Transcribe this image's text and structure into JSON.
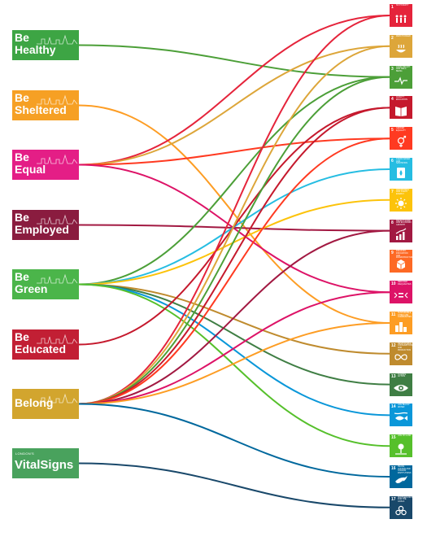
{
  "themes": [
    {
      "line1": "Be",
      "line2": "Healthy",
      "color": "#3DA544"
    },
    {
      "line1": "Be",
      "line2": "Sheltered",
      "color": "#F6A024"
    },
    {
      "line1": "Be",
      "line2": "Equal",
      "color": "#E41E86"
    },
    {
      "line1": "Be",
      "line2": "Employed",
      "color": "#8A1C3F"
    },
    {
      "line1": "Be",
      "line2": "Green",
      "color": "#4BB54A"
    },
    {
      "line1": "Be",
      "line2": "Educated",
      "color": "#C21F34"
    },
    {
      "line1": "Belong",
      "line2": "",
      "color": "#D2A52E"
    },
    {
      "line1": "LONDON'S",
      "line2": "VitalSigns",
      "color": "#49A25D"
    }
  ],
  "goals": [
    {
      "num": "1",
      "title": "NO POVERTY",
      "color": "#E5243B",
      "icon": "people-icon"
    },
    {
      "num": "2",
      "title": "ZERO HUNGER",
      "color": "#DDA63A",
      "icon": "bowl-icon"
    },
    {
      "num": "3",
      "title": "GOOD HEALTH AND WELL-BEING",
      "color": "#4C9F38",
      "icon": "heartbeat-icon"
    },
    {
      "num": "4",
      "title": "QUALITY EDUCATION",
      "color": "#C5192D",
      "icon": "book-icon"
    },
    {
      "num": "5",
      "title": "GENDER EQUALITY",
      "color": "#FF3A21",
      "icon": "gender-icon"
    },
    {
      "num": "6",
      "title": "CLEAN WATER AND SANITATION",
      "color": "#26BDE2",
      "icon": "water-icon"
    },
    {
      "num": "7",
      "title": "AFFORDABLE AND CLEAN ENERGY",
      "color": "#FCC30B",
      "icon": "sun-icon"
    },
    {
      "num": "8",
      "title": "DECENT WORK AND ECONOMIC GROWTH",
      "color": "#A21942",
      "icon": "growth-chart-icon"
    },
    {
      "num": "9",
      "title": "INDUSTRY, INNOVATION AND INFRASTRUCTURE",
      "color": "#FD6925",
      "icon": "cubes-icon"
    },
    {
      "num": "10",
      "title": "REDUCED INEQUALITIES",
      "color": "#DD1367",
      "icon": "equality-icon"
    },
    {
      "num": "11",
      "title": "SUSTAINABLE CITIES AND COMMUNITIES",
      "color": "#FD9D24",
      "icon": "buildings-icon"
    },
    {
      "num": "12",
      "title": "RESPONSIBLE CONSUMPTION AND PRODUCTION",
      "color": "#BF8B2E",
      "icon": "infinity-icon"
    },
    {
      "num": "13",
      "title": "CLIMATE ACTION",
      "color": "#3F7E44",
      "icon": "eye-globe-icon"
    },
    {
      "num": "14",
      "title": "LIFE BELOW WATER",
      "color": "#0A97D9",
      "icon": "fish-icon"
    },
    {
      "num": "15",
      "title": "LIFE ON LAND",
      "color": "#56C02B",
      "icon": "tree-icon"
    },
    {
      "num": "16",
      "title": "PEACE, JUSTICE AND STRONG INSTITUTIONS",
      "color": "#00689D",
      "icon": "dove-icon"
    },
    {
      "num": "17",
      "title": "PARTNERSHIPS FOR THE GOALS",
      "color": "#19486A",
      "icon": "rings-icon"
    }
  ],
  "links": [
    {
      "from": 0,
      "to": 2
    },
    {
      "from": 1,
      "to": 10
    },
    {
      "from": 2,
      "to": 0
    },
    {
      "from": 2,
      "to": 1
    },
    {
      "from": 2,
      "to": 4
    },
    {
      "from": 2,
      "to": 9
    },
    {
      "from": 3,
      "to": 7
    },
    {
      "from": 4,
      "to": 2
    },
    {
      "from": 4,
      "to": 5
    },
    {
      "from": 4,
      "to": 6
    },
    {
      "from": 4,
      "to": 11
    },
    {
      "from": 4,
      "to": 12
    },
    {
      "from": 4,
      "to": 13
    },
    {
      "from": 4,
      "to": 14
    },
    {
      "from": 5,
      "to": 3
    },
    {
      "from": 6,
      "to": 0
    },
    {
      "from": 6,
      "to": 1
    },
    {
      "from": 6,
      "to": 2
    },
    {
      "from": 6,
      "to": 3
    },
    {
      "from": 6,
      "to": 4
    },
    {
      "from": 6,
      "to": 7
    },
    {
      "from": 6,
      "to": 9
    },
    {
      "from": 6,
      "to": 10
    },
    {
      "from": 6,
      "to": 15
    },
    {
      "from": 7,
      "to": 16
    }
  ]
}
